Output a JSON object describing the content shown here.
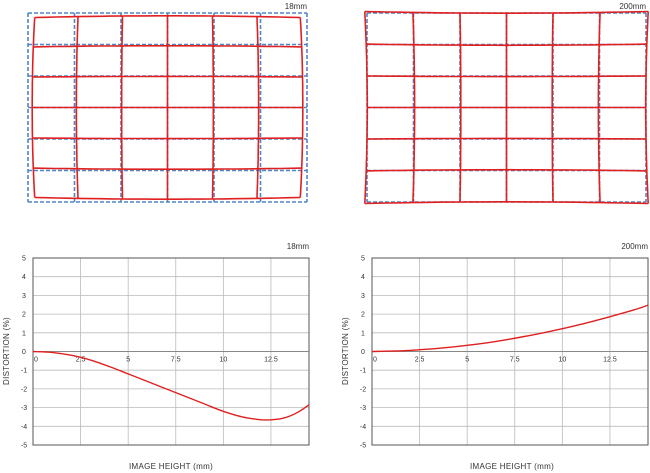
{
  "colors": {
    "ideal_grid": "#4f86c6",
    "distorted_grid": "#e02020",
    "curve": "#e02020",
    "plot_border": "#555555",
    "gridline": "#bbbbbb",
    "text": "#333333"
  },
  "grid_panels": [
    {
      "focal_label": "18mm",
      "distortion_type": "barrel"
    },
    {
      "focal_label": "200mm",
      "distortion_type": "pincushion"
    }
  ],
  "chart_data": [
    {
      "type": "line",
      "title": "18mm",
      "xlabel": "IMAGE HEIGHT (mm)",
      "ylabel": "DISTORTION (%)",
      "xlim": [
        0,
        14.5
      ],
      "ylim": [
        -5,
        5
      ],
      "x_ticks": [
        "0",
        "2.5",
        "5",
        "7.5",
        "10",
        "12.5"
      ],
      "y_ticks": [
        "5",
        "4",
        "3",
        "2",
        "1",
        "0",
        "-1",
        "-2",
        "-3",
        "-4",
        "-5"
      ],
      "grid": true,
      "series": [
        {
          "x": [
            0,
            1,
            2,
            3,
            4,
            5,
            6,
            7,
            8,
            9,
            10,
            11,
            12,
            12.5,
            13,
            13.5,
            14,
            14.5
          ],
          "y": [
            0,
            -0.05,
            -0.2,
            -0.45,
            -0.8,
            -1.2,
            -1.6,
            -2.0,
            -2.4,
            -2.8,
            -3.2,
            -3.5,
            -3.65,
            -3.65,
            -3.6,
            -3.45,
            -3.2,
            -2.85
          ]
        }
      ]
    },
    {
      "type": "line",
      "title": "200mm",
      "xlabel": "IMAGE HEIGHT (mm)",
      "ylabel": "DISTORTION (%)",
      "xlim": [
        0,
        14.5
      ],
      "ylim": [
        -5,
        5
      ],
      "x_ticks": [
        "0",
        "2.5",
        "5",
        "7.5",
        "10",
        "12.5"
      ],
      "y_ticks": [
        "5",
        "4",
        "3",
        "2",
        "1",
        "0",
        "-1",
        "-2",
        "-3",
        "-4",
        "-5"
      ],
      "grid": true,
      "series": [
        {
          "x": [
            0,
            1,
            2,
            3,
            4,
            5,
            6,
            7,
            8,
            9,
            10,
            11,
            12,
            13,
            14,
            14.5
          ],
          "y": [
            0,
            0.02,
            0.06,
            0.13,
            0.22,
            0.33,
            0.46,
            0.62,
            0.8,
            1.0,
            1.22,
            1.46,
            1.72,
            2.0,
            2.3,
            2.48
          ]
        }
      ]
    }
  ]
}
